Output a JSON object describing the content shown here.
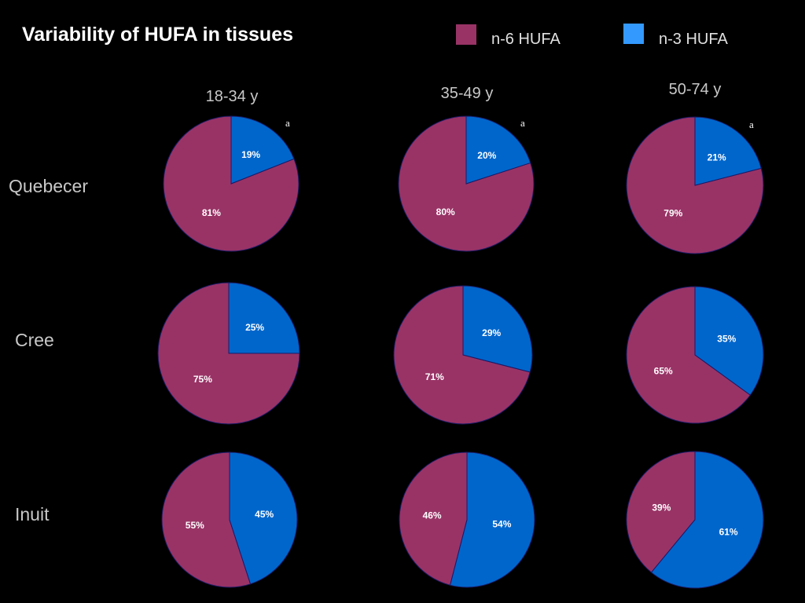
{
  "title": "Variability of HUFA in tissues",
  "legend": [
    {
      "label": "n-6 HUFA",
      "color": "#993366"
    },
    {
      "label": "n-3 HUFA",
      "color": "#3399ff"
    }
  ],
  "colors": {
    "n6": "#993366",
    "n3": "#0066cc",
    "stroke": "#1a1a66",
    "background": "#000000"
  },
  "chart_data": {
    "type": "pie",
    "title": "Variability of HUFA in tissues",
    "series_names": [
      "n-6 HUFA",
      "n-3 HUFA"
    ],
    "columns": [
      "18-34 y",
      "35-49 y",
      "50-74 y"
    ],
    "rows": [
      "Quebecer",
      "Cree",
      "Inuit"
    ],
    "annotation": "a",
    "pies": [
      {
        "row": "Quebecer",
        "column": "18-34 y",
        "n3": 19,
        "n6": 81,
        "n3_label": "19%",
        "n6_label": "81%",
        "annotation": "a"
      },
      {
        "row": "Quebecer",
        "column": "35-49 y",
        "n3": 20,
        "n6": 80,
        "n3_label": "20%",
        "n6_label": "80%",
        "annotation": "a"
      },
      {
        "row": "Quebecer",
        "column": "50-74 y",
        "n3": 21,
        "n6": 79,
        "n3_label": "21%",
        "n6_label": "79%",
        "annotation": "a"
      },
      {
        "row": "Cree",
        "column": "18-34 y",
        "n3": 25,
        "n6": 75,
        "n3_label": "25%",
        "n6_label": "75%"
      },
      {
        "row": "Cree",
        "column": "35-49 y",
        "n3": 29,
        "n6": 71,
        "n3_label": "29%",
        "n6_label": "71%"
      },
      {
        "row": "Cree",
        "column": "50-74 y",
        "n3": 35,
        "n6": 65,
        "n3_label": "35%",
        "n6_label": "65%"
      },
      {
        "row": "Inuit",
        "column": "18-34 y",
        "n3": 45,
        "n6": 55,
        "n3_label": "45%",
        "n6_label": "55%"
      },
      {
        "row": "Inuit",
        "column": "35-49 y",
        "n3": 54,
        "n6": 46,
        "n3_label": "54%",
        "n6_label": "46%"
      },
      {
        "row": "Inuit",
        "column": "50-74 y",
        "n3": 61,
        "n6": 39,
        "n3_label": "61%",
        "n6_label": "39%"
      }
    ]
  }
}
